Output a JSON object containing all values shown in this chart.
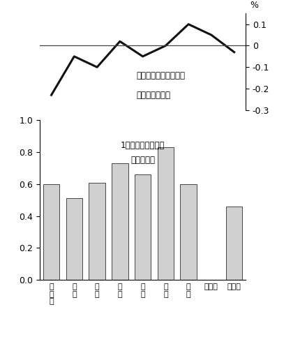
{
  "region_labels": [
    "北\n海\n道",
    "東\n北",
    "関\n東",
    "中\n部",
    "近\n畸",
    "中\n国",
    "四\n国",
    "沖縄・",
    "九州・"
  ],
  "bar_values": [
    0.6,
    0.51,
    0.61,
    0.73,
    0.66,
    0.83,
    0.6,
    0.0,
    0.46
  ],
  "bar_visible": [
    true,
    true,
    true,
    true,
    true,
    true,
    true,
    false,
    true
  ],
  "line_values": [
    -0.23,
    -0.05,
    -0.1,
    0.02,
    -0.05,
    0.0,
    0.1,
    0.05,
    -0.03
  ],
  "bar_color": "#d0d0d0",
  "bar_edgecolor": "#444444",
  "line_color": "#111111",
  "line_width": 2.2,
  "bar_ylim": [
    0,
    1.0
  ],
  "bar_yticks": [
    0,
    0.2,
    0.4,
    0.6,
    0.8,
    1.0
  ],
  "line_ylim": [
    -0.3,
    0.15
  ],
  "line_yticks": [
    -0.3,
    -0.2,
    -0.1,
    0.0,
    0.1
  ],
  "line_yticklabels": [
    "-0.3",
    "-0.2",
    "-0.1",
    "0",
    "0.1"
  ],
  "bar_label_line1": "1市町村あたり構造",
  "bar_label_line2": "改革特区数",
  "line_label_line1": "労働移動による生産性",
  "line_label_line2": "向上率（年率）",
  "pct_label": "%",
  "background_color": "#ffffff"
}
